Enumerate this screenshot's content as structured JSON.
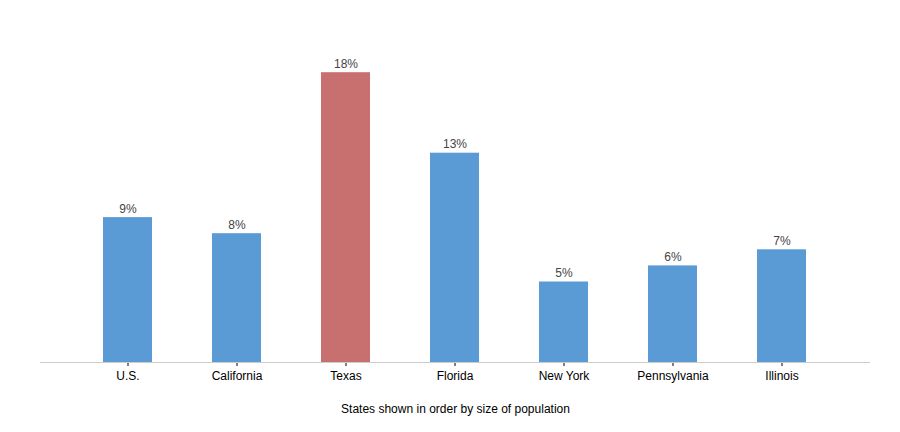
{
  "chart_data": {
    "type": "bar",
    "categories": [
      "U.S.",
      "California",
      "Texas",
      "Florida",
      "New York",
      "Pennsylvania",
      "Illinois"
    ],
    "values": [
      9,
      8,
      18,
      13,
      5,
      6,
      7
    ],
    "value_labels": [
      "9%",
      "8%",
      "18%",
      "13%",
      "5%",
      "6%",
      "7%"
    ],
    "colors": [
      "#5b9bd5",
      "#5b9bd5",
      "#c87070",
      "#5b9bd5",
      "#5b9bd5",
      "#5b9bd5",
      "#5b9bd5"
    ],
    "xlabel": "States shown in order by size of population",
    "ylim": [
      0,
      20
    ],
    "data_labels": true,
    "tick_labels": "x",
    "grid": false
  }
}
